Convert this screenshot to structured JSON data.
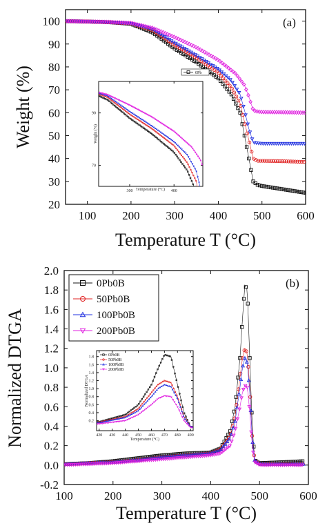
{
  "chart_data": [
    {
      "type": "scatter",
      "panel_label": "(a)",
      "xlabel": "Temperature T (°C)",
      "ylabel": "Weight (%)",
      "xlim": [
        50,
        600
      ],
      "ylim": [
        20,
        105
      ],
      "xticks": [
        100,
        200,
        300,
        400,
        500,
        600
      ],
      "yticks": [
        20,
        30,
        40,
        50,
        60,
        70,
        80,
        90,
        100
      ],
      "legend_entries": [
        "0Pb"
      ],
      "series": [
        {
          "color": "#111111",
          "marker": "square",
          "x": [
            50,
            100,
            150,
            200,
            250,
            300,
            350,
            400,
            430,
            450,
            460,
            470,
            480,
            490,
            500,
            550,
            600
          ],
          "y": [
            100,
            99.8,
            99.5,
            98.8,
            95,
            88,
            82,
            75,
            68,
            60,
            50,
            40,
            30,
            28.5,
            28,
            26.5,
            25
          ]
        },
        {
          "color": "#e02020",
          "marker": "circle",
          "x": [
            50,
            100,
            150,
            200,
            250,
            300,
            350,
            400,
            430,
            450,
            460,
            470,
            480,
            490,
            500,
            550,
            600
          ],
          "y": [
            100,
            99.8,
            99.5,
            99,
            96,
            89.5,
            84,
            77.5,
            71,
            64,
            56,
            48,
            40,
            39,
            39,
            38.8,
            38.5
          ]
        },
        {
          "color": "#2030e0",
          "marker": "triangle-down",
          "x": [
            50,
            100,
            150,
            200,
            250,
            300,
            350,
            400,
            430,
            450,
            460,
            470,
            480,
            490,
            500,
            550,
            600
          ],
          "y": [
            100,
            99.8,
            99.5,
            99,
            96.5,
            90.5,
            85,
            79,
            74,
            68,
            61,
            53,
            47,
            46.7,
            46.5,
            46.5,
            46.5
          ]
        },
        {
          "color": "#e020e0",
          "marker": "diamond",
          "x": [
            50,
            100,
            150,
            200,
            250,
            300,
            350,
            400,
            440,
            460,
            470,
            480,
            490,
            500,
            550,
            600
          ],
          "y": [
            100,
            99.8,
            99.6,
            99.2,
            97,
            93,
            88.5,
            83,
            77,
            72,
            67,
            61,
            60.5,
            60.3,
            60.2,
            60
          ]
        }
      ],
      "inset": {
        "xlabel": "Temperature (°C)",
        "ylabel": "Weight (%)",
        "xlim": [
          230,
          465
        ],
        "ylim": [
          62,
          102
        ],
        "xticks": [
          300,
          400
        ],
        "yticks": [
          70,
          90
        ]
      }
    },
    {
      "type": "scatter",
      "panel_label": "(b)",
      "xlabel": "Temperature T (°C)",
      "ylabel": "Normalized DTGA",
      "xlim": [
        100,
        600
      ],
      "ylim": [
        -0.2,
        2.0
      ],
      "xticks": [
        100,
        200,
        300,
        400,
        500,
        600
      ],
      "yticks": [
        -0.2,
        0.0,
        0.2,
        0.4,
        0.6,
        0.8,
        1.0,
        1.2,
        1.4,
        1.6,
        1.8,
        2.0
      ],
      "legend_entries": [
        "0Pb0B",
        "50Pb0B",
        "100Pb0B",
        "200Pb0B"
      ],
      "series": [
        {
          "name": "0Pb0B",
          "color": "#111111",
          "marker": "square",
          "x": [
            100,
            150,
            200,
            250,
            300,
            350,
            400,
            420,
            440,
            450,
            460,
            465,
            470,
            475,
            480,
            485,
            490,
            500,
            550,
            590
          ],
          "y": [
            0.01,
            0.02,
            0.04,
            0.07,
            0.1,
            0.12,
            0.13,
            0.17,
            0.35,
            0.6,
            1.1,
            1.5,
            1.85,
            1.8,
            1.1,
            0.4,
            0.05,
            0.02,
            0.03,
            0.04
          ]
        },
        {
          "name": "50Pb0B",
          "color": "#e02020",
          "marker": "circle",
          "x": [
            100,
            150,
            200,
            250,
            300,
            350,
            400,
            420,
            440,
            450,
            460,
            465,
            470,
            475,
            480,
            485,
            490,
            500,
            550,
            590
          ],
          "y": [
            0.01,
            0.02,
            0.03,
            0.05,
            0.08,
            0.1,
            0.12,
            0.16,
            0.3,
            0.5,
            0.9,
            1.1,
            1.2,
            1.15,
            0.8,
            0.3,
            0.05,
            0.01,
            0.01,
            0.01
          ]
        },
        {
          "name": "100Pb0B",
          "color": "#2030e0",
          "marker": "triangle-up",
          "x": [
            100,
            150,
            200,
            250,
            300,
            350,
            400,
            420,
            440,
            450,
            460,
            465,
            470,
            475,
            480,
            485,
            490,
            500,
            550,
            590
          ],
          "y": [
            0.01,
            0.02,
            0.03,
            0.05,
            0.08,
            0.1,
            0.12,
            0.15,
            0.28,
            0.45,
            0.8,
            1.0,
            1.1,
            1.05,
            0.75,
            0.28,
            0.05,
            0.01,
            0.01,
            0.01
          ]
        },
        {
          "name": "200Pb0B",
          "color": "#e020e0",
          "marker": "triangle-down",
          "x": [
            100,
            150,
            200,
            250,
            300,
            350,
            400,
            420,
            440,
            450,
            460,
            465,
            470,
            475,
            480,
            485,
            490,
            500,
            550,
            590
          ],
          "y": [
            0.0,
            0.01,
            0.02,
            0.04,
            0.06,
            0.08,
            0.1,
            0.12,
            0.2,
            0.35,
            0.6,
            0.75,
            0.82,
            0.8,
            0.55,
            0.2,
            0.03,
            0.0,
            0.0,
            0.0
          ]
        }
      ],
      "inset": {
        "xlabel": "Temperature (°C)",
        "ylabel": "Normalized DTGA",
        "xlim": [
          418,
          492
        ],
        "ylim": [
          -0.05,
          1.95
        ],
        "xticks": [
          420,
          430,
          440,
          450,
          460,
          470,
          480,
          490
        ],
        "yticks": [
          0.2,
          0.4,
          0.6,
          0.8,
          1.0,
          1.2,
          1.4,
          1.6,
          1.8
        ],
        "legend_entries": [
          "0Pb0B",
          "50Pb0B",
          "100Pb0B",
          "200Pb0B"
        ]
      }
    }
  ]
}
